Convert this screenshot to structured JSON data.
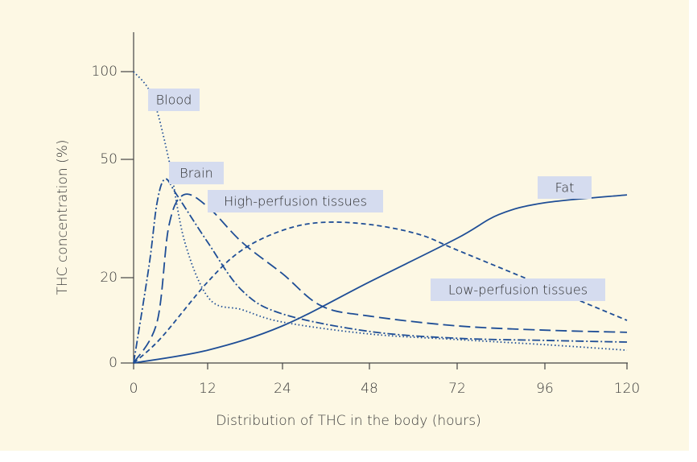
{
  "chart_data": {
    "type": "line",
    "xlabel": "Distribution of THC in the body (hours)",
    "ylabel": "THC concentration (%)",
    "xlim": [
      0,
      120
    ],
    "ylim": [
      0,
      100
    ],
    "xticks": [
      0,
      12,
      24,
      48,
      72,
      96,
      120
    ],
    "yticks": [
      0,
      20,
      50,
      100
    ],
    "series": [
      {
        "name": "Blood",
        "color": "#1f4e96",
        "dash": "1.5 3",
        "x": [
          0,
          3,
          5.7,
          8.3,
          12.3,
          17.5,
          24,
          48,
          72,
          96,
          120
        ],
        "values": [
          100,
          86,
          50,
          29,
          15,
          12.5,
          9.6,
          6.8,
          5.5,
          4.3,
          3
        ]
      },
      {
        "name": "Brain",
        "color": "#1f4e96",
        "dash": "10 3 2 3",
        "x": [
          0,
          2.5,
          3.8,
          5.1,
          7,
          12,
          17.5,
          24,
          48,
          72,
          96,
          120
        ],
        "values": [
          0,
          23,
          39,
          45,
          41,
          29,
          17,
          11.5,
          7.4,
          5.8,
          5.3,
          4.9
        ]
      },
      {
        "name": "High-perfusion tissues",
        "color": "#1f4e96",
        "dash": "14 6",
        "x": [
          0,
          3.8,
          5.7,
          8.1,
          12,
          17.5,
          24,
          34.7,
          48,
          72,
          96,
          120
        ],
        "values": [
          0,
          9.6,
          33,
          41,
          38,
          29,
          21,
          13.4,
          11,
          8.7,
          7.7,
          7.2
        ]
      },
      {
        "name": "Low-perfusion tissues",
        "color": "#1f4e96",
        "dash": "6 4",
        "x": [
          0,
          4.4,
          12,
          17.5,
          24,
          34.7,
          48,
          61.5,
          72,
          96,
          120
        ],
        "values": [
          0,
          5.8,
          19,
          27,
          32,
          34,
          33.5,
          31,
          27,
          18,
          10
        ]
      },
      {
        "name": "Fat",
        "color": "#1f4e96",
        "dash": "none",
        "x": [
          0,
          12,
          24,
          48,
          72,
          83.4,
          96,
          120
        ],
        "values": [
          0,
          3,
          8.7,
          19,
          30,
          36,
          39,
          41
        ]
      }
    ]
  }
}
